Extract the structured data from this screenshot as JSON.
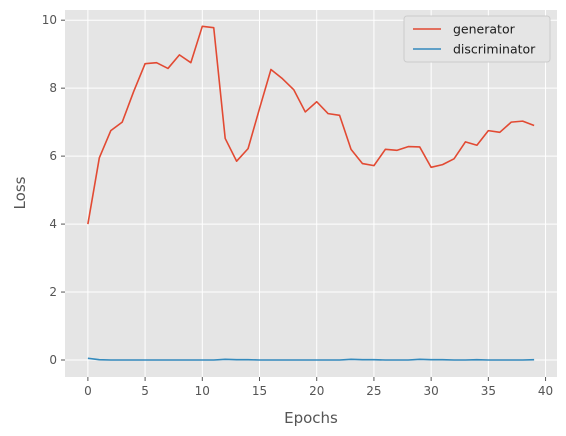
{
  "chart_data": {
    "type": "line",
    "title": "",
    "xlabel": "Epochs",
    "ylabel": "Loss",
    "xlim": [
      -2,
      41
    ],
    "ylim": [
      -0.5,
      10.3
    ],
    "xticks": [
      0,
      5,
      10,
      15,
      20,
      25,
      30,
      35,
      40
    ],
    "yticks": [
      0,
      2,
      4,
      6,
      8,
      10
    ],
    "grid": true,
    "legend_position": "top-right",
    "x": [
      0,
      1,
      2,
      3,
      4,
      5,
      6,
      7,
      8,
      9,
      10,
      11,
      12,
      13,
      14,
      15,
      16,
      17,
      18,
      19,
      20,
      21,
      22,
      23,
      24,
      25,
      26,
      27,
      28,
      29,
      30,
      31,
      32,
      33,
      34,
      35,
      36,
      37,
      38,
      39
    ],
    "series": [
      {
        "name": "generator",
        "color": "#e24a33",
        "values": [
          4.0,
          5.95,
          6.75,
          7.0,
          7.9,
          8.72,
          8.75,
          8.58,
          8.98,
          8.75,
          9.82,
          9.78,
          6.52,
          5.85,
          6.22,
          7.4,
          8.55,
          8.28,
          7.95,
          7.3,
          7.6,
          7.25,
          7.2,
          6.2,
          5.78,
          5.72,
          6.2,
          6.17,
          6.28,
          6.27,
          5.67,
          5.75,
          5.92,
          6.42,
          6.32,
          6.75,
          6.7,
          7.0,
          7.03,
          6.9
        ]
      },
      {
        "name": "discriminator",
        "color": "#348abd",
        "values": [
          0.05,
          0.01,
          0.0,
          0.0,
          0.0,
          0.0,
          0.0,
          0.0,
          0.0,
          0.0,
          0.0,
          0.0,
          0.02,
          0.01,
          0.01,
          0.0,
          0.0,
          0.0,
          0.0,
          0.0,
          0.0,
          0.0,
          0.0,
          0.02,
          0.01,
          0.01,
          0.0,
          0.0,
          0.0,
          0.02,
          0.01,
          0.01,
          0.0,
          0.0,
          0.01,
          0.0,
          0.0,
          0.0,
          0.0,
          0.01
        ]
      }
    ]
  }
}
